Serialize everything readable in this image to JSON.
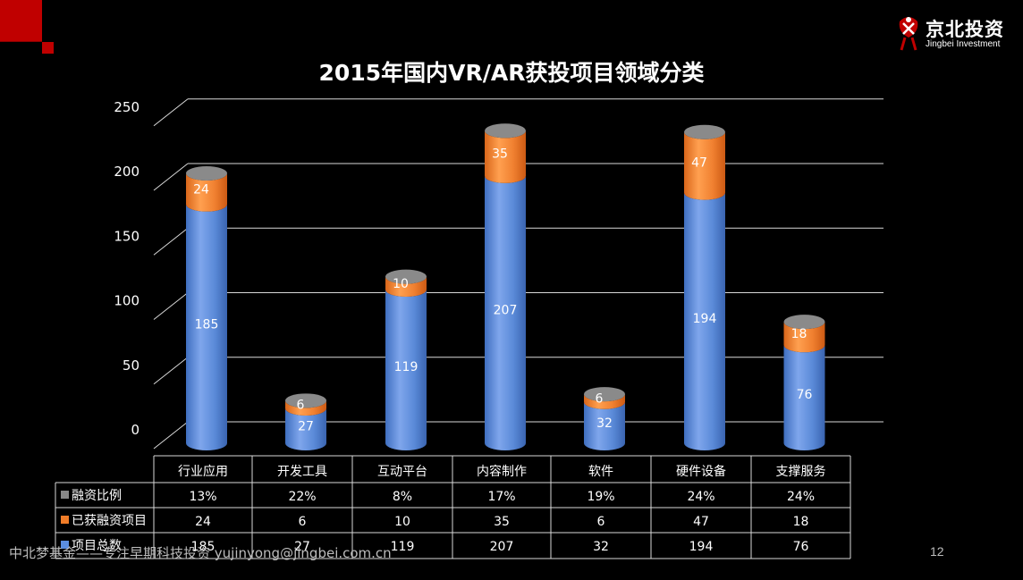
{
  "logo": {
    "name": "京北投资",
    "sub": "Jingbei Investment"
  },
  "chart_data": {
    "type": "bar",
    "stacked": true,
    "title": "2015年国内VR/AR获投项目领域分类",
    "categories": [
      "行业应用",
      "开发工具",
      "互动平台",
      "内容制作",
      "软件",
      "硬件设备",
      "支撑服务"
    ],
    "ylim": [
      0,
      250
    ],
    "yticks": [
      0,
      50,
      100,
      150,
      200,
      250
    ],
    "grid": true,
    "colors": {
      "项目总数": "#5b8ee0",
      "已获融资项目": "#f07c28",
      "融资比例": "#888888"
    },
    "series": [
      {
        "name": "项目总数",
        "values": [
          185,
          27,
          119,
          207,
          32,
          194,
          76
        ]
      },
      {
        "name": "已获融资项目",
        "values": [
          24,
          6,
          10,
          35,
          6,
          47,
          18
        ]
      }
    ],
    "table": {
      "rows": [
        {
          "name": "融资比例",
          "values": [
            "13%",
            "22%",
            "8%",
            "17%",
            "19%",
            "24%",
            "24%"
          ]
        },
        {
          "name": "已获融资项目",
          "values": [
            "24",
            "6",
            "10",
            "35",
            "6",
            "47",
            "18"
          ]
        },
        {
          "name": "项目总数",
          "values": [
            "185",
            "27",
            "119",
            "207",
            "32",
            "194",
            "76"
          ]
        }
      ]
    }
  },
  "footer": {
    "text": "中北梦基金——专注早期科技投资   yujinyong@jingbei.com.cn"
  },
  "page": {
    "number": "12"
  }
}
